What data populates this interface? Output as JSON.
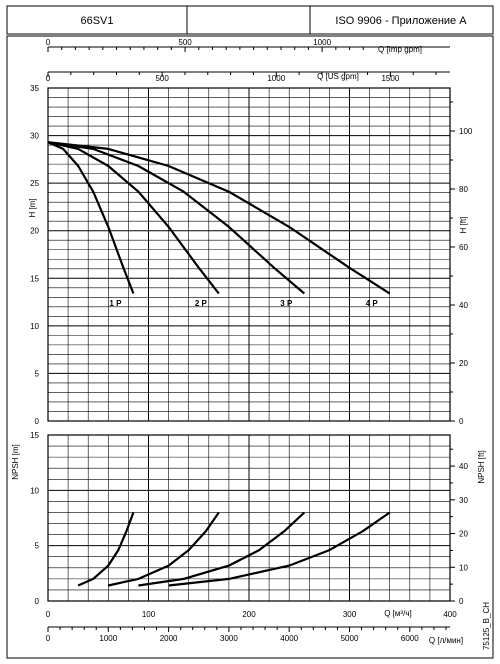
{
  "header": {
    "model": "66SV1",
    "middle": "",
    "standard": "ISO 9906 - Приложение A"
  },
  "side_code": "75125_B_CH",
  "chart_data": [
    {
      "id": "head",
      "type": "line",
      "xlabel": "Q [м³/ч]",
      "ylabel": "H [m]",
      "ylabel_right": "H [ft]",
      "xlim": [
        0,
        400
      ],
      "ylim": [
        0,
        35
      ],
      "ylim_ft": [
        0,
        114.83
      ],
      "y_ticks": [
        "0",
        "5",
        "10",
        "15",
        "20",
        "25",
        "30",
        "35"
      ],
      "y_ticks_ft": [
        "0",
        "20",
        "40",
        "60",
        "80",
        "100"
      ],
      "top_axes": [
        {
          "label": "Q [Imp gpm]",
          "ticks": [
            "0",
            "500",
            "1000"
          ]
        },
        {
          "label": "Q [US gpm]",
          "ticks": [
            "0",
            "500",
            "1000",
            "1500"
          ]
        }
      ],
      "grid": true,
      "series": [
        {
          "name": "1 P",
          "x": [
            0,
            15,
            30,
            45,
            60,
            75,
            85
          ],
          "y": [
            29.3,
            28.6,
            26.8,
            24.1,
            20.4,
            16.1,
            13.4
          ]
        },
        {
          "name": "2 P",
          "x": [
            0,
            30,
            60,
            90,
            120,
            150,
            170
          ],
          "y": [
            29.3,
            28.6,
            26.8,
            24.1,
            20.4,
            16.1,
            13.4
          ]
        },
        {
          "name": "3 P",
          "x": [
            0,
            45,
            90,
            135,
            180,
            225,
            255
          ],
          "y": [
            29.3,
            28.6,
            26.8,
            24.1,
            20.4,
            16.1,
            13.4
          ]
        },
        {
          "name": "4 P",
          "x": [
            0,
            60,
            120,
            180,
            240,
            300,
            340
          ],
          "y": [
            29.3,
            28.6,
            26.8,
            24.1,
            20.4,
            16.1,
            13.4
          ]
        }
      ]
    },
    {
      "id": "npsh",
      "type": "line",
      "xlabel": "Q [м³/ч]",
      "ylabel": "NPSH [m]",
      "ylabel_right": "NPSH [ft]",
      "xlim": [
        0,
        400
      ],
      "ylim": [
        0,
        15
      ],
      "ylim_ft": [
        0,
        49.2
      ],
      "x_ticks": [
        "0",
        "100",
        "200",
        "300",
        "400"
      ],
      "y_ticks": [
        "0",
        "5",
        "10",
        "15"
      ],
      "y_ticks_ft": [
        "0",
        "10",
        "20",
        "30",
        "40"
      ],
      "bottom_axis2": {
        "label": "Q [л/мин]",
        "ticks": [
          "0",
          "1000",
          "2000",
          "3000",
          "4000",
          "5000",
          "6000"
        ]
      },
      "grid": true,
      "series": [
        {
          "name": "1 P",
          "x": [
            30,
            45,
            60,
            70,
            78,
            85
          ],
          "y": [
            1.4,
            2.0,
            3.2,
            4.6,
            6.3,
            8.0
          ]
        },
        {
          "name": "2 P",
          "x": [
            60,
            90,
            120,
            140,
            157,
            170
          ],
          "y": [
            1.4,
            2.0,
            3.2,
            4.6,
            6.3,
            8.0
          ]
        },
        {
          "name": "3 P",
          "x": [
            90,
            135,
            180,
            210,
            235,
            255
          ],
          "y": [
            1.4,
            2.0,
            3.2,
            4.6,
            6.3,
            8.0
          ]
        },
        {
          "name": "4 P",
          "x": [
            120,
            180,
            240,
            280,
            313,
            340
          ],
          "y": [
            1.4,
            2.0,
            3.2,
            4.6,
            6.3,
            8.0
          ]
        }
      ]
    }
  ]
}
